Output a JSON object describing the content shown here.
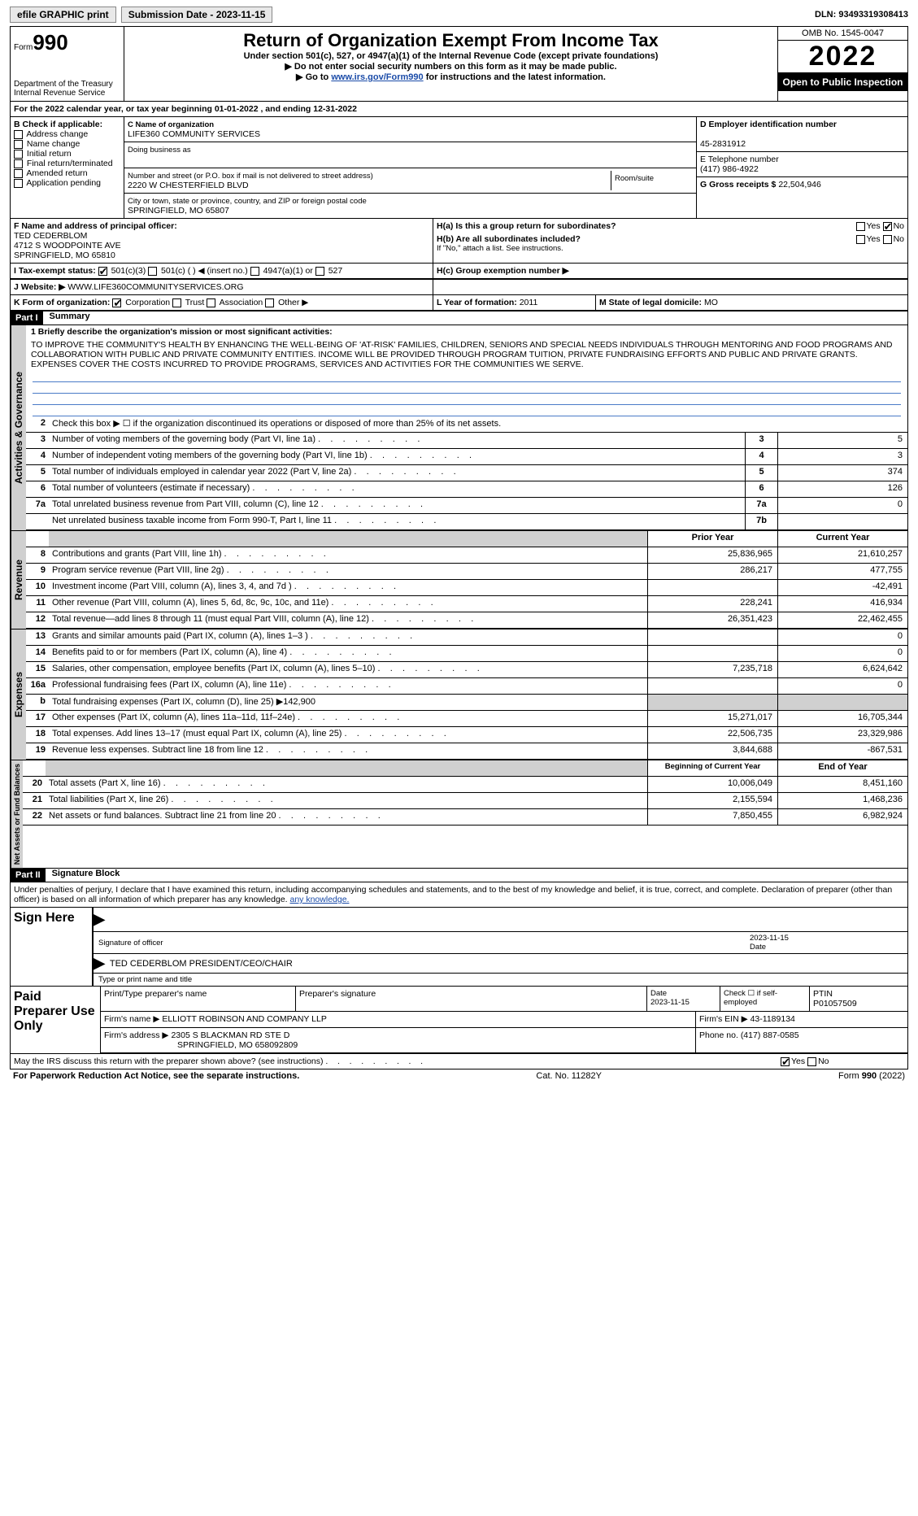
{
  "topbar": {
    "efile": "efile GRAPHIC print",
    "submission_label": "Submission Date - 2023-11-15",
    "dln": "DLN: 93493319308413"
  },
  "header": {
    "form_prefix": "Form",
    "form_number": "990",
    "dept": "Department of the Treasury",
    "irs": "Internal Revenue Service",
    "title": "Return of Organization Exempt From Income Tax",
    "subtitle": "Under section 501(c), 527, or 4947(a)(1) of the Internal Revenue Code (except private foundations)",
    "warn1": "▶ Do not enter social security numbers on this form as it may be made public.",
    "warn2_pre": "▶ Go to ",
    "warn2_link": "www.irs.gov/Form990",
    "warn2_post": " for instructions and the latest information.",
    "omb": "OMB No. 1545-0047",
    "year": "2022",
    "inspect": "Open to Public Inspection"
  },
  "sectionA": {
    "line": "For the 2022 calendar year, or tax year beginning 01-01-2022    , and ending 12-31-2022"
  },
  "sectionB": {
    "label": "B Check if applicable:",
    "opts": [
      "Address change",
      "Name change",
      "Initial return",
      "Final return/terminated",
      "Amended return",
      "Application pending"
    ]
  },
  "sectionC": {
    "label": "C Name of organization",
    "name": "LIFE360 COMMUNITY SERVICES",
    "dba_label": "Doing business as",
    "street_label": "Number and street (or P.O. box if mail is not delivered to street address)",
    "street": "2220 W CHESTERFIELD BLVD",
    "room_label": "Room/suite",
    "city_label": "City or town, state or province, country, and ZIP or foreign postal code",
    "city": "SPRINGFIELD, MO  65807"
  },
  "sectionD": {
    "label": "D Employer identification number",
    "value": "45-2831912"
  },
  "sectionE": {
    "label": "E Telephone number",
    "value": "(417) 986-4922"
  },
  "sectionG": {
    "label": "G Gross receipts $",
    "value": "22,504,946"
  },
  "sectionF": {
    "label": "F  Name and address of principal officer:",
    "name": "TED CEDERBLOM",
    "addr1": "4712 S WOODPOINTE AVE",
    "addr2": "SPRINGFIELD, MO  65810"
  },
  "sectionH": {
    "ha": "H(a)  Is this a group return for subordinates?",
    "hb": "H(b)  Are all subordinates included?",
    "hb_note": "If \"No,\" attach a list. See instructions.",
    "hc": "H(c)  Group exemption number ▶",
    "yes": "Yes",
    "no": "No"
  },
  "sectionI": {
    "label": "I    Tax-exempt status:",
    "opt1": "501(c)(3)",
    "opt2": "501(c) (  ) ◀ (insert no.)",
    "opt3": "4947(a)(1) or",
    "opt4": "527"
  },
  "sectionJ": {
    "label": "J    Website: ▶",
    "value": "WWW.LIFE360COMMUNITYSERVICES.ORG"
  },
  "sectionK": {
    "label": "K Form of organization:",
    "opts": [
      "Corporation",
      "Trust",
      "Association",
      "Other ▶"
    ]
  },
  "sectionL": {
    "label": "L Year of formation:",
    "value": "2011"
  },
  "sectionM": {
    "label": "M State of legal domicile:",
    "value": "MO"
  },
  "part1": {
    "hdr": "Part I",
    "title": "Summary",
    "vert1": "Activities & Governance",
    "vert2": "Revenue",
    "vert3": "Expenses",
    "vert4": "Net Assets or Fund Balances",
    "mission_label": "1 Briefly describe the organization's mission or most significant activities:",
    "mission": "TO IMPROVE THE COMMUNITY'S HEALTH BY ENHANCING THE WELL-BEING OF 'AT-RISK' FAMILIES, CHILDREN, SENIORS AND SPECIAL NEEDS INDIVIDUALS THROUGH MENTORING AND FOOD PROGRAMS AND COLLABORATION WITH PUBLIC AND PRIVATE COMMUNITY ENTITIES. INCOME WILL BE PROVIDED THROUGH PROGRAM TUITION, PRIVATE FUNDRAISING EFFORTS AND PUBLIC AND PRIVATE GRANTS. EXPENSES COVER THE COSTS INCURRED TO PROVIDE PROGRAMS, SERVICES AND ACTIVITIES FOR THE COMMUNITIES WE SERVE.",
    "line2": "Check this box ▶ ☐  if the organization discontinued its operations or disposed of more than 25% of its net assets.",
    "lines_single": [
      {
        "n": "3",
        "d": "Number of voting members of the governing body (Part VI, line 1a)",
        "c": "3",
        "v": "5"
      },
      {
        "n": "4",
        "d": "Number of independent voting members of the governing body (Part VI, line 1b)",
        "c": "4",
        "v": "3"
      },
      {
        "n": "5",
        "d": "Total number of individuals employed in calendar year 2022 (Part V, line 2a)",
        "c": "5",
        "v": "374"
      },
      {
        "n": "6",
        "d": "Total number of volunteers (estimate if necessary)",
        "c": "6",
        "v": "126"
      },
      {
        "n": "7a",
        "d": "Total unrelated business revenue from Part VIII, column (C), line 12",
        "c": "7a",
        "v": "0"
      },
      {
        "n": "",
        "d": "Net unrelated business taxable income from Form 990-T, Part I, line 11",
        "c": "7b",
        "v": ""
      }
    ],
    "col_headers": {
      "prior": "Prior Year",
      "current": "Current Year",
      "begin": "Beginning of Current Year",
      "end": "End of Year"
    },
    "lines_dual_rev": [
      {
        "n": "8",
        "d": "Contributions and grants (Part VIII, line 1h)",
        "p": "25,836,965",
        "c": "21,610,257"
      },
      {
        "n": "9",
        "d": "Program service revenue (Part VIII, line 2g)",
        "p": "286,217",
        "c": "477,755"
      },
      {
        "n": "10",
        "d": "Investment income (Part VIII, column (A), lines 3, 4, and 7d )",
        "p": "",
        "c": "-42,491"
      },
      {
        "n": "11",
        "d": "Other revenue (Part VIII, column (A), lines 5, 6d, 8c, 9c, 10c, and 11e)",
        "p": "228,241",
        "c": "416,934"
      },
      {
        "n": "12",
        "d": "Total revenue—add lines 8 through 11 (must equal Part VIII, column (A), line 12)",
        "p": "26,351,423",
        "c": "22,462,455"
      }
    ],
    "lines_dual_exp": [
      {
        "n": "13",
        "d": "Grants and similar amounts paid (Part IX, column (A), lines 1–3 )",
        "p": "",
        "c": "0"
      },
      {
        "n": "14",
        "d": "Benefits paid to or for members (Part IX, column (A), line 4)",
        "p": "",
        "c": "0"
      },
      {
        "n": "15",
        "d": "Salaries, other compensation, employee benefits (Part IX, column (A), lines 5–10)",
        "p": "7,235,718",
        "c": "6,624,642"
      },
      {
        "n": "16a",
        "d": "Professional fundraising fees (Part IX, column (A), line 11e)",
        "p": "",
        "c": "0"
      },
      {
        "n": "b",
        "d": "Total fundraising expenses (Part IX, column (D), line 25) ▶142,900",
        "p": "",
        "c": "",
        "shaded": true
      },
      {
        "n": "17",
        "d": "Other expenses (Part IX, column (A), lines 11a–11d, 11f–24e)",
        "p": "15,271,017",
        "c": "16,705,344"
      },
      {
        "n": "18",
        "d": "Total expenses. Add lines 13–17 (must equal Part IX, column (A), line 25)",
        "p": "22,506,735",
        "c": "23,329,986"
      },
      {
        "n": "19",
        "d": "Revenue less expenses. Subtract line 18 from line 12",
        "p": "3,844,688",
        "c": "-867,531"
      }
    ],
    "lines_dual_net": [
      {
        "n": "20",
        "d": "Total assets (Part X, line 16)",
        "p": "10,006,049",
        "c": "8,451,160"
      },
      {
        "n": "21",
        "d": "Total liabilities (Part X, line 26)",
        "p": "2,155,594",
        "c": "1,468,236"
      },
      {
        "n": "22",
        "d": "Net assets or fund balances. Subtract line 21 from line 20",
        "p": "7,850,455",
        "c": "6,982,924"
      }
    ]
  },
  "part2": {
    "hdr": "Part II",
    "title": "Signature Block",
    "decl": "Under penalties of perjury, I declare that I have examined this return, including accompanying schedules and statements, and to the best of my knowledge and belief, it is true, correct, and complete. Declaration of preparer (other than officer) is based on all information of which preparer has any knowledge.",
    "sign_here": "Sign Here",
    "sig_officer": "Signature of officer",
    "sig_date": "2023-11-15",
    "date_label": "Date",
    "officer_name": "TED CEDERBLOM  PRESIDENT/CEO/CHAIR",
    "officer_label": "Type or print name and title",
    "paid": "Paid Preparer Use Only",
    "p_name_label": "Print/Type preparer's name",
    "p_sig_label": "Preparer's signature",
    "p_date_label": "Date",
    "p_date": "2023-11-15",
    "p_check_label": "Check ☐ if self-employed",
    "ptin_label": "PTIN",
    "ptin": "P01057509",
    "firm_name_label": "Firm's name    ▶",
    "firm_name": "ELLIOTT ROBINSON AND COMPANY LLP",
    "firm_ein_label": "Firm's EIN ▶",
    "firm_ein": "43-1189134",
    "firm_addr_label": "Firm's address ▶",
    "firm_addr1": "2305 S BLACKMAN RD STE D",
    "firm_addr2": "SPRINGFIELD, MO  658092809",
    "phone_label": "Phone no.",
    "phone": "(417) 887-0585",
    "discuss": "May the IRS discuss this return with the preparer shown above? (see instructions)",
    "yes": "Yes",
    "no": "No"
  },
  "footer": {
    "left": "For Paperwork Reduction Act Notice, see the separate instructions.",
    "mid": "Cat. No. 11282Y",
    "right_pre": "Form ",
    "right_num": "990",
    "right_post": " (2022)"
  }
}
